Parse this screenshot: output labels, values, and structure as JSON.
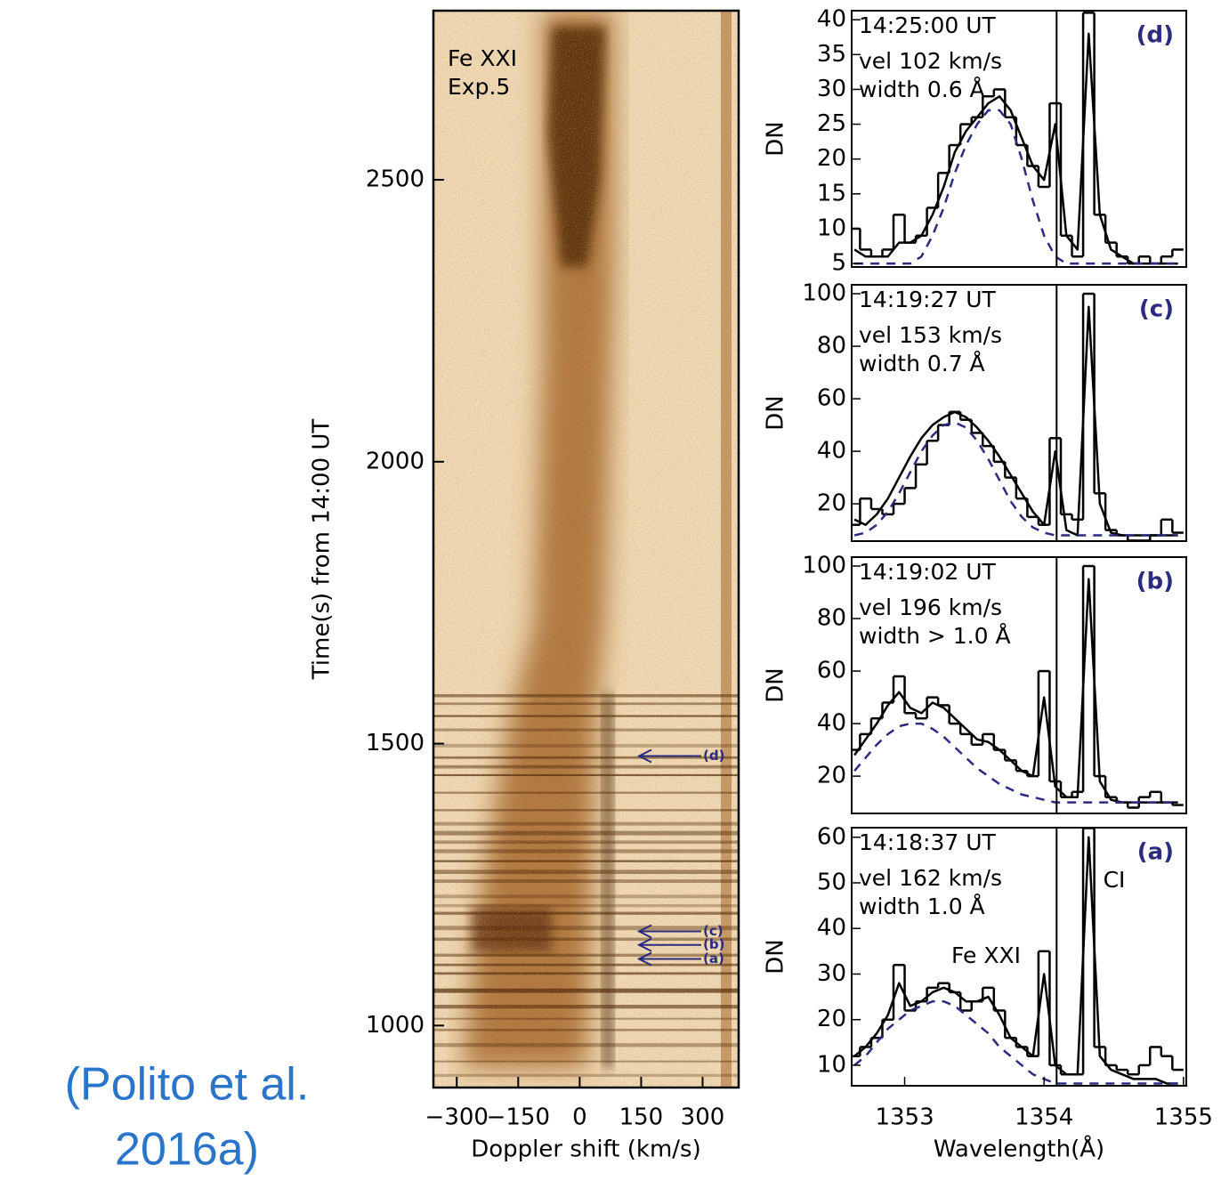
{
  "citation": [
    "(Polito et al.",
    "2016a)"
  ],
  "chart_data": [
    {
      "type": "image",
      "xlabel": "Doppler shift (km/s)",
      "ylabel": "Time(s) from 14:00 UT",
      "xlim": [
        -357,
        388
      ],
      "ylim": [
        890,
        2800
      ],
      "xticks": [
        {
          "value": -300,
          "label": "−300"
        },
        {
          "value": -150,
          "label": "−150"
        },
        0,
        150,
        300
      ],
      "yticks": [
        1000,
        1500,
        2000,
        2500
      ],
      "annotations": [
        "Fe XXI",
        "Exp.5"
      ],
      "arrows": [
        {
          "label": "(d)",
          "y": 1478
        },
        {
          "label": "(c)",
          "y": 1167
        },
        {
          "label": "(b)",
          "y": 1143
        },
        {
          "label": "(a)",
          "y": 1118
        }
      ]
    },
    {
      "type": "line",
      "title": "(d)",
      "annotations": [
        "14:25:00 UT",
        "vel 102 km/s",
        "width 0.6 Å"
      ],
      "ylabel": "DN",
      "x": [
        1352.64,
        1352.72,
        1352.8,
        1352.88,
        1352.96,
        1353.04,
        1353.12,
        1353.2,
        1353.28,
        1353.36,
        1353.44,
        1353.52,
        1353.6,
        1353.68,
        1353.76,
        1353.84,
        1353.92,
        1354.0,
        1354.08,
        1354.16,
        1354.24,
        1354.32,
        1354.4,
        1354.48,
        1354.56,
        1354.64,
        1354.72,
        1354.8,
        1354.88,
        1354.96
      ],
      "series": [
        {
          "color": "#000000",
          "style": "steps",
          "values": [
            10,
            7,
            6,
            7,
            12,
            8,
            9,
            13,
            18,
            22,
            25,
            26,
            29,
            30,
            26,
            22,
            19,
            16,
            28,
            9,
            6,
            41,
            12,
            8,
            6,
            5,
            6,
            5,
            6,
            7
          ]
        },
        {
          "color": "#000000",
          "style": "solid",
          "values": [
            7,
            6,
            6,
            6,
            8,
            8,
            9,
            12,
            16,
            21,
            24,
            26,
            28,
            29,
            27,
            23,
            19,
            17,
            25,
            9,
            7,
            38,
            12,
            7,
            6,
            5,
            5,
            5,
            5,
            5
          ]
        },
        {
          "color": "#2b2b80",
          "style": "dashed",
          "values": [
            5,
            5,
            5,
            5,
            5,
            5,
            6,
            9,
            13,
            18,
            22,
            25,
            27,
            27,
            25,
            20,
            14,
            9,
            6,
            5,
            5,
            5,
            5,
            5,
            5,
            5,
            5,
            5,
            5,
            5
          ]
        }
      ],
      "vline": 1354.09,
      "xlim": [
        1352.62,
        1355.02
      ],
      "ylim": [
        4.5,
        41.3
      ],
      "yticks": [
        5,
        10,
        15,
        20,
        25,
        30,
        35,
        40
      ]
    },
    {
      "type": "line",
      "title": "(c)",
      "annotations": [
        "14:19:27 UT",
        "vel 153 km/s",
        "width 0.7 Å"
      ],
      "ylabel": "DN",
      "x": [
        1352.64,
        1352.72,
        1352.8,
        1352.88,
        1352.96,
        1353.04,
        1353.12,
        1353.2,
        1353.28,
        1353.36,
        1353.44,
        1353.52,
        1353.6,
        1353.68,
        1353.76,
        1353.84,
        1353.92,
        1354.0,
        1354.08,
        1354.16,
        1354.24,
        1354.32,
        1354.4,
        1354.48,
        1354.56,
        1354.64,
        1354.72,
        1354.8,
        1354.88,
        1354.96
      ],
      "series": [
        {
          "color": "#000000",
          "style": "steps",
          "values": [
            12,
            22,
            18,
            16,
            20,
            26,
            35,
            44,
            50,
            55,
            52,
            47,
            42,
            36,
            30,
            22,
            15,
            12,
            45,
            16,
            14,
            100,
            24,
            10,
            8,
            6,
            6,
            8,
            14,
            9
          ]
        },
        {
          "color": "#000000",
          "style": "solid",
          "values": [
            14,
            12,
            16,
            22,
            30,
            38,
            45,
            50,
            53,
            55,
            53,
            49,
            44,
            38,
            31,
            24,
            17,
            12,
            40,
            10,
            8,
            95,
            20,
            9,
            8,
            8,
            8,
            8,
            8,
            8
          ]
        },
        {
          "color": "#2b2b80",
          "style": "dashed",
          "values": [
            8,
            9,
            12,
            17,
            24,
            32,
            40,
            46,
            50,
            51,
            49,
            44,
            37,
            29,
            21,
            15,
            11,
            9,
            8,
            8,
            8,
            8,
            8,
            8,
            8,
            8,
            8,
            8,
            8,
            8
          ]
        }
      ],
      "vline": 1354.09,
      "xlim": [
        1352.62,
        1355.02
      ],
      "ylim": [
        5.8,
        103.4
      ],
      "yticks": [
        20,
        40,
        60,
        80,
        100
      ]
    },
    {
      "type": "line",
      "title": "(b)",
      "annotations": [
        "14:19:02 UT",
        "vel 196 km/s",
        "width > 1.0 Å"
      ],
      "ylabel": "DN",
      "x": [
        1352.64,
        1352.72,
        1352.8,
        1352.88,
        1352.96,
        1353.04,
        1353.12,
        1353.2,
        1353.28,
        1353.36,
        1353.44,
        1353.52,
        1353.6,
        1353.68,
        1353.76,
        1353.84,
        1353.92,
        1354.0,
        1354.08,
        1354.16,
        1354.24,
        1354.32,
        1354.4,
        1354.48,
        1354.56,
        1354.64,
        1354.72,
        1354.8,
        1354.88,
        1354.96
      ],
      "series": [
        {
          "color": "#000000",
          "style": "steps",
          "values": [
            30,
            36,
            42,
            48,
            58,
            44,
            42,
            50,
            47,
            40,
            36,
            32,
            36,
            30,
            26,
            22,
            20,
            60,
            18,
            12,
            14,
            100,
            20,
            12,
            10,
            8,
            12,
            14,
            10,
            9
          ]
        },
        {
          "color": "#000000",
          "style": "solid",
          "values": [
            28,
            34,
            40,
            47,
            52,
            46,
            44,
            48,
            46,
            42,
            38,
            34,
            33,
            30,
            26,
            22,
            20,
            50,
            16,
            12,
            12,
            95,
            18,
            11,
            10,
            10,
            10,
            10,
            10,
            10
          ]
        },
        {
          "color": "#2b2b80",
          "style": "dashed",
          "values": [
            22,
            27,
            32,
            36,
            39,
            40,
            40,
            38,
            35,
            31,
            27,
            23,
            20,
            17,
            15,
            13,
            12,
            11,
            10,
            10,
            10,
            10,
            10,
            10,
            10,
            10,
            10,
            10,
            10,
            10
          ]
        }
      ],
      "vline": 1354.09,
      "xlim": [
        1352.62,
        1355.02
      ],
      "ylim": [
        5.8,
        103.4
      ],
      "yticks": [
        20,
        40,
        60,
        80,
        100
      ]
    },
    {
      "type": "line",
      "title": "(a)",
      "annotations": [
        "14:18:37 UT",
        "vel 162 km/s",
        "width 1.0 Å"
      ],
      "line_labels": [
        "Fe XXI",
        "CI"
      ],
      "ylabel": "DN",
      "xlabel": "Wavelength(Å)",
      "x": [
        1352.64,
        1352.72,
        1352.8,
        1352.88,
        1352.96,
        1353.04,
        1353.12,
        1353.2,
        1353.28,
        1353.36,
        1353.44,
        1353.52,
        1353.6,
        1353.68,
        1353.76,
        1353.84,
        1353.92,
        1354.0,
        1354.08,
        1354.16,
        1354.24,
        1354.32,
        1354.4,
        1354.48,
        1354.56,
        1354.64,
        1354.72,
        1354.8,
        1354.88,
        1354.96
      ],
      "series": [
        {
          "color": "#000000",
          "style": "steps",
          "values": [
            12,
            14,
            16,
            20,
            32,
            22,
            24,
            27,
            28,
            26,
            22,
            24,
            27,
            22,
            16,
            14,
            12,
            35,
            10,
            8,
            8,
            62,
            14,
            10,
            9,
            8,
            10,
            14,
            12,
            9
          ]
        },
        {
          "color": "#000000",
          "style": "solid",
          "values": [
            12,
            14,
            17,
            21,
            28,
            23,
            24,
            26,
            27,
            26,
            24,
            24,
            25,
            21,
            16,
            14,
            12,
            30,
            10,
            8,
            8,
            60,
            12,
            9,
            8,
            7,
            7,
            7,
            6,
            6
          ]
        },
        {
          "color": "#2b2b80",
          "style": "dashed",
          "values": [
            10,
            12,
            15,
            18,
            20,
            22,
            23,
            24,
            24,
            23,
            21,
            19,
            17,
            14,
            12,
            10,
            8,
            7,
            6,
            6,
            6,
            6,
            6,
            6,
            6,
            6,
            6,
            6,
            6,
            6
          ]
        }
      ],
      "vline": 1354.09,
      "xlim": [
        1352.62,
        1355.02
      ],
      "ylim": [
        5.5,
        62.1
      ],
      "yticks": [
        10,
        20,
        30,
        40,
        50,
        60
      ],
      "xticks": [
        1353,
        1354,
        1355
      ]
    }
  ]
}
